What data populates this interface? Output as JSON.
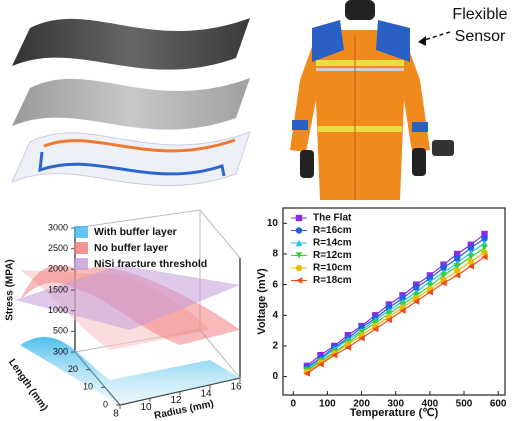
{
  "illustration": {
    "label": [
      "Flexible",
      "Sensor"
    ]
  },
  "chart_data": [
    {
      "type": "line",
      "xlabel": "Temperature (℃)",
      "ylabel": "Voltage (mV)",
      "x": [
        40,
        80,
        120,
        160,
        200,
        240,
        280,
        320,
        360,
        400,
        440,
        480,
        520,
        560
      ],
      "xlim": [
        -30,
        620
      ],
      "xticks": [
        0,
        100,
        200,
        300,
        400,
        500,
        600
      ],
      "ylim": [
        -1.2,
        11
      ],
      "yticks": [
        0,
        2,
        4,
        6,
        8,
        10
      ],
      "legend": "upper-left",
      "series": [
        {
          "name": "The Flat",
          "color": "#8a2be2",
          "marker": "square",
          "values": [
            0.7,
            1.4,
            2.0,
            2.7,
            3.3,
            4.0,
            4.7,
            5.3,
            6.0,
            6.6,
            7.3,
            8.0,
            8.6,
            9.3
          ]
        },
        {
          "name": "R=16cm",
          "color": "#1f5fe0",
          "marker": "circle",
          "values": [
            0.6,
            1.2,
            1.9,
            2.5,
            3.2,
            3.8,
            4.5,
            5.1,
            5.8,
            6.4,
            7.1,
            7.7,
            8.4,
            9.0
          ]
        },
        {
          "name": "R=14cm",
          "color": "#22c2e6",
          "marker": "triangle-up",
          "values": [
            0.5,
            1.1,
            1.8,
            2.4,
            3.0,
            3.7,
            4.3,
            4.9,
            5.5,
            6.2,
            6.8,
            7.4,
            8.1,
            8.7
          ]
        },
        {
          "name": "R=12cm",
          "color": "#35d035",
          "marker": "triangle-down",
          "values": [
            0.4,
            1.0,
            1.6,
            2.2,
            2.9,
            3.5,
            4.1,
            4.7,
            5.3,
            5.9,
            6.6,
            7.2,
            7.8,
            8.4
          ]
        },
        {
          "name": "R=10cm",
          "color": "#e8bd00",
          "marker": "circle",
          "values": [
            0.3,
            0.9,
            1.5,
            2.1,
            2.7,
            3.3,
            3.9,
            4.5,
            5.1,
            5.7,
            6.3,
            6.9,
            7.5,
            8.1
          ]
        },
        {
          "name": "R=18cm",
          "color": "#f04a1a",
          "marker": "triangle-left",
          "values": [
            0.2,
            0.8,
            1.4,
            1.9,
            2.5,
            3.1,
            3.7,
            4.3,
            4.9,
            5.5,
            6.1,
            6.6,
            7.2,
            7.8
          ]
        }
      ]
    },
    {
      "type": "surface",
      "zlabel": "Stress (MPA)",
      "xlabel": "Radius (mm)",
      "ylabel": "Length (mm)",
      "zlim": [
        0,
        3000
      ],
      "zticks": [
        0,
        500,
        1000,
        1500,
        2000,
        2500,
        3000
      ],
      "xlim": [
        8,
        16
      ],
      "xticks": [
        8,
        10,
        12,
        14,
        16
      ],
      "ylim": [
        0,
        30
      ],
      "yticks": [
        0,
        10,
        20,
        30
      ],
      "series": [
        {
          "name": "With buffer  layer",
          "color": "#3cb8ea"
        },
        {
          "name": "No  buffer  layer",
          "color": "#f07878"
        },
        {
          "name": "NiSi  fracture  threshold",
          "color": "#c49cd8"
        }
      ]
    }
  ]
}
